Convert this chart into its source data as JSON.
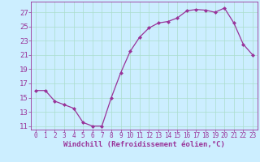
{
  "x": [
    0,
    1,
    2,
    3,
    4,
    5,
    6,
    7,
    8,
    9,
    10,
    11,
    12,
    13,
    14,
    15,
    16,
    17,
    18,
    19,
    20,
    21,
    22,
    23
  ],
  "y": [
    16,
    16,
    14.5,
    14,
    13.5,
    11.5,
    11,
    11,
    15,
    18.5,
    21.5,
    23.5,
    24.8,
    25.5,
    25.7,
    26.2,
    27.2,
    27.4,
    27.3,
    27.0,
    27.6,
    25.5,
    22.5,
    21.0
  ],
  "line_color": "#993399",
  "marker": "D",
  "markersize": 2.0,
  "linewidth": 0.9,
  "bg_color": "#cceeff",
  "grid_color": "#aaddcc",
  "axis_color": "#993399",
  "tick_color": "#993399",
  "xlabel": "Windchill (Refroidissement éolien,°C)",
  "xlabel_fontsize": 6.5,
  "tick_fontsize": 5.5,
  "ytick_fontsize": 6.5,
  "ylim": [
    10.5,
    28.5
  ],
  "xlim": [
    -0.5,
    23.5
  ],
  "yticks": [
    11,
    13,
    15,
    17,
    19,
    21,
    23,
    25,
    27
  ],
  "xticks": [
    0,
    1,
    2,
    3,
    4,
    5,
    6,
    7,
    8,
    9,
    10,
    11,
    12,
    13,
    14,
    15,
    16,
    17,
    18,
    19,
    20,
    21,
    22,
    23
  ]
}
